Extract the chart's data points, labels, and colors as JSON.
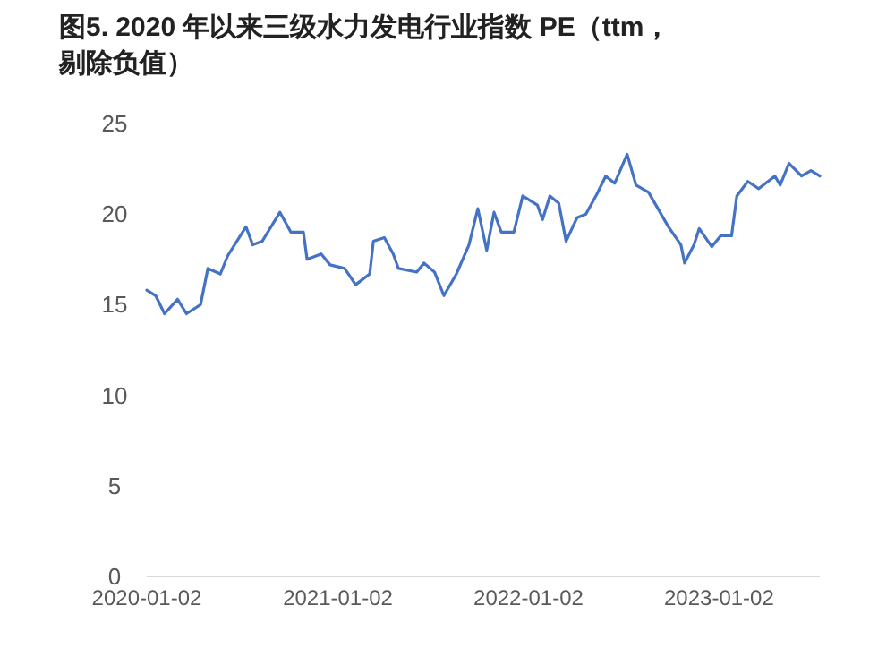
{
  "chart_data": {
    "type": "line",
    "title": "图5. 2020 年以来三级水力发电行业指数 PE（ttm，剔除负值）",
    "x": [
      "2020-01-02",
      "2020-01-19",
      "2020-02-05",
      "2020-03-01",
      "2020-03-18",
      "2020-04-14",
      "2020-04-28",
      "2020-05-22",
      "2020-06-05",
      "2020-07-10",
      "2020-07-23",
      "2020-08-10",
      "2020-09-13",
      "2020-10-04",
      "2020-10-28",
      "2020-11-04",
      "2020-12-01",
      "2020-12-18",
      "2021-01-15",
      "2021-02-05",
      "2021-03-04",
      "2021-03-11",
      "2021-04-01",
      "2021-04-18",
      "2021-04-28",
      "2021-06-02",
      "2021-06-16",
      "2021-07-06",
      "2021-07-24",
      "2021-08-17",
      "2021-09-10",
      "2021-09-27",
      "2021-10-14",
      "2021-10-28",
      "2021-11-11",
      "2021-12-05",
      "2021-12-22",
      "2022-01-19",
      "2022-01-29",
      "2022-02-12",
      "2022-03-01",
      "2022-03-15",
      "2022-04-05",
      "2022-04-22",
      "2022-05-13",
      "2022-05-30",
      "2022-06-16",
      "2022-07-10",
      "2022-07-27",
      "2022-08-20",
      "2022-09-07",
      "2022-09-27",
      "2022-10-21",
      "2022-10-28",
      "2022-11-15",
      "2022-11-25",
      "2022-12-19",
      "2023-01-05",
      "2023-01-26",
      "2023-02-05",
      "2023-02-26",
      "2023-03-19",
      "2023-04-19",
      "2023-04-29",
      "2023-05-16",
      "2023-06-09",
      "2023-06-27",
      "2023-07-14"
    ],
    "series": [
      {
        "color": "#4472c4",
        "values": [
          15.8,
          15.5,
          14.5,
          15.3,
          14.5,
          15.0,
          17.0,
          16.7,
          17.7,
          19.3,
          18.3,
          18.5,
          20.1,
          19.0,
          19.0,
          17.5,
          17.8,
          17.2,
          17.0,
          16.1,
          16.7,
          18.5,
          18.7,
          17.8,
          17.0,
          16.8,
          17.3,
          16.8,
          15.5,
          16.7,
          18.3,
          20.3,
          18.0,
          20.1,
          19.0,
          19.0,
          21.0,
          20.5,
          19.7,
          21.0,
          20.6,
          18.5,
          19.8,
          20.0,
          21.1,
          22.1,
          21.7,
          23.3,
          21.6,
          21.2,
          20.3,
          19.3,
          18.3,
          17.3,
          18.3,
          19.2,
          18.2,
          18.8,
          18.8,
          21.0,
          21.8,
          21.4,
          22.1,
          21.6,
          22.8,
          22.1,
          22.4,
          22.1
        ]
      }
    ],
    "xlim": [
      "2020-01-02",
      "2023-07-14"
    ],
    "xticks": [
      {
        "value": "2020-01-02",
        "label": "2020-01-02"
      },
      {
        "value": "2021-01-02",
        "label": "2021-01-02"
      },
      {
        "value": "2022-01-02",
        "label": "2022-01-02"
      },
      {
        "value": "2023-01-02",
        "label": "2023-01-02"
      }
    ],
    "ylim": [
      0,
      25
    ],
    "yticks": [
      0,
      5,
      10,
      15,
      20,
      25
    ],
    "grid": false,
    "marker": "none",
    "line_style": "solid"
  }
}
